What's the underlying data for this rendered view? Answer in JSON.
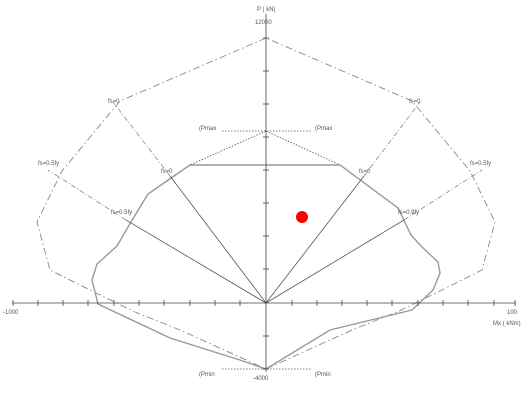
{
  "diagram": {
    "axis_labels": {
      "y": "P ( kN)",
      "x": "Mx ( kNm)"
    },
    "tick_labels": {
      "y_top": "12000",
      "y_bottom": "-4000",
      "x_left": "-1000",
      "x_right": "100"
    },
    "strain_labels": {
      "fs0_outer_left": "fs=0",
      "fs0_outer_right": "fs=0",
      "fs05_outer_left": "fs=0.5fy",
      "fs05_outer_right": "fs=0.5fy",
      "fs0_inner_left": "fs=0",
      "fs0_inner_right": "fs=0",
      "fs05_inner_left": "fs=0.5fy",
      "fs05_inner_right": "fs=0.9fy"
    },
    "cap_labels": {
      "pmax_left": "(Pmax",
      "pmax_right": "(Pmax",
      "pmin_left": "(Pmin",
      "pmin_right": "(Pmin"
    },
    "colors": {
      "axis": "#444444",
      "inner_curve": "#999999",
      "outer_curve": "#888888",
      "point": "#ff0000"
    }
  }
}
